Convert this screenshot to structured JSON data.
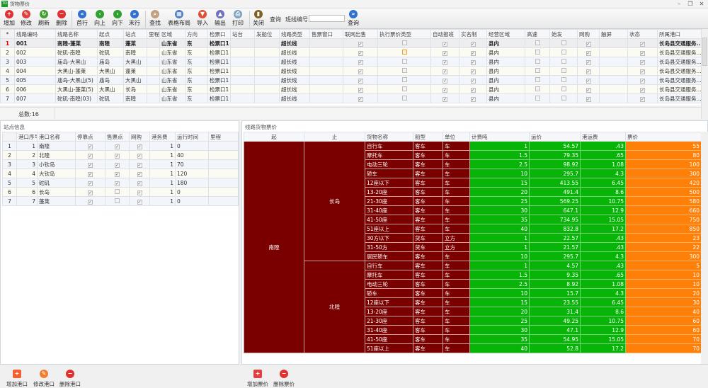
{
  "window": {
    "title": "货物票价",
    "logo": "TD"
  },
  "toolbar": {
    "buttons": [
      {
        "label": "增加",
        "icon": "plus-circle-icon",
        "color": "#e03030"
      },
      {
        "label": "修改",
        "icon": "edit-icon",
        "color": "#e04040"
      },
      {
        "label": "刷新",
        "icon": "refresh-icon",
        "color": "#40a030"
      },
      {
        "label": "删除",
        "icon": "minus-circle-icon",
        "color": "#e03030"
      },
      {
        "label": "首行",
        "icon": "first-row-icon",
        "color": "#3070d0"
      },
      {
        "label": "向上",
        "icon": "up-icon",
        "color": "#30a030"
      },
      {
        "label": "向下",
        "icon": "down-icon",
        "color": "#30a030"
      },
      {
        "label": "末行",
        "icon": "last-row-icon",
        "color": "#3070d0"
      },
      {
        "label": "查找",
        "icon": "magnifier-icon",
        "color": "#c0a080"
      },
      {
        "label": "表格布局",
        "icon": "grid-layout-icon",
        "color": "#5080c0"
      },
      {
        "label": "导入",
        "icon": "import-icon",
        "color": "#e05030"
      },
      {
        "label": "输出",
        "icon": "export-icon",
        "color": "#7070c0"
      },
      {
        "label": "打印",
        "icon": "printer-icon",
        "color": "#80a0c0"
      },
      {
        "label": "关闭",
        "icon": "exit-door-icon",
        "color": "#806020"
      }
    ],
    "query_label": "查询",
    "route_code_label": "班线编号",
    "route_code_value": "",
    "query_button": "查询"
  },
  "routes": {
    "columns": [
      "*",
      "线路编码",
      "线路名称",
      "起点",
      "站点",
      "里程",
      "区域",
      "方向",
      "检票口",
      "站台",
      "发船位",
      "线路类型",
      "售票窗口",
      "联网出售",
      "执行票价类型",
      "自动报班",
      "实名制",
      "经营区域",
      "高速",
      "始发",
      "网购",
      "触屏",
      "状态",
      "所属港口"
    ],
    "rows": [
      [
        "1",
        "001",
        "南隍-蓬莱",
        "南隍",
        "蓬莱",
        "",
        "山东省",
        "东",
        "检票口1",
        "",
        "",
        "超长线",
        "",
        true,
        false,
        true,
        true,
        "县内",
        false,
        false,
        true,
        "",
        true,
        "长岛县交通服务..."
      ],
      [
        "2",
        "002",
        "砣矶-南隍",
        "砣矶",
        "南隍",
        "",
        "山东省",
        "东",
        "检票口1",
        "",
        "",
        "超长线",
        "",
        true,
        "orange",
        true,
        true,
        "县内",
        false,
        false,
        true,
        "",
        true,
        "长岛县交通服务..."
      ],
      [
        "3",
        "003",
        "庙岛-大黑山",
        "庙岛",
        "大黑山",
        "",
        "山东省",
        "东",
        "检票口1",
        "",
        "",
        "超长线",
        "",
        true,
        false,
        true,
        true,
        "县内",
        false,
        false,
        true,
        "",
        true,
        "长岛县交通服务..."
      ],
      [
        "4",
        "004",
        "大黑山-蓬莱",
        "大黑山",
        "蓬莱",
        "",
        "山东省",
        "东",
        "检票口1",
        "",
        "",
        "超长线",
        "",
        true,
        false,
        true,
        true,
        "县内",
        false,
        false,
        true,
        "",
        true,
        "长岛县交通服务..."
      ],
      [
        "5",
        "005",
        "庙岛-大黑山(5)",
        "庙岛",
        "大黑山",
        "",
        "山东省",
        "东",
        "检票口1",
        "",
        "",
        "超长线",
        "",
        true,
        false,
        true,
        true,
        "县内",
        false,
        false,
        true,
        "",
        true,
        "长岛县交通服务..."
      ],
      [
        "6",
        "006",
        "大黑山-蓬莱(5)",
        "大黑山",
        "长岛",
        "",
        "山东省",
        "东",
        "检票口1",
        "",
        "",
        "超长线",
        "",
        true,
        false,
        true,
        true,
        "县内",
        false,
        false,
        true,
        "",
        true,
        "长岛县交通服务..."
      ],
      [
        "7",
        "007",
        "砣矶-南隍(03)",
        "砣矶",
        "南隍",
        "",
        "山东省",
        "东",
        "检票口1",
        "",
        "",
        "超长线",
        "",
        true,
        false,
        true,
        true,
        "县内",
        false,
        false,
        true,
        "",
        true,
        "长岛县交通服务..."
      ]
    ],
    "total_label": "总数:16"
  },
  "stations": {
    "title": "站点信息",
    "columns": [
      "",
      "港口序号",
      "港口名称",
      "停靠点",
      "售票点",
      "网购",
      "港务费",
      "运行时间",
      "里程"
    ],
    "rows": [
      [
        "1",
        "1",
        "南隍",
        true,
        true,
        true,
        "1",
        "0",
        ""
      ],
      [
        "2",
        "2",
        "北隍",
        true,
        true,
        true,
        "1",
        "40",
        ""
      ],
      [
        "3",
        "3",
        "小钦岛",
        true,
        true,
        true,
        "1",
        "70",
        ""
      ],
      [
        "4",
        "4",
        "大钦岛",
        true,
        true,
        true,
        "1",
        "120",
        ""
      ],
      [
        "5",
        "5",
        "砣矶",
        true,
        true,
        true,
        "1",
        "180",
        ""
      ],
      [
        "6",
        "6",
        "长岛",
        true,
        false,
        true,
        "1",
        "0",
        ""
      ],
      [
        "7",
        "7",
        "蓬莱",
        true,
        false,
        true,
        "1",
        "0",
        ""
      ]
    ],
    "buttons": [
      {
        "label": "增加港口",
        "icon": "add-icon",
        "color": "#f06030"
      },
      {
        "label": "修改港口",
        "icon": "edit-icon",
        "color": "#f08030"
      },
      {
        "label": "删除港口",
        "icon": "delete-icon",
        "color": "#e03030"
      }
    ]
  },
  "prices": {
    "title": "线路货物票价",
    "columns": [
      "起",
      "止",
      "货物名称",
      "船型",
      "单位",
      "计费吨",
      "运价",
      "港运费",
      "票价"
    ],
    "colors": {
      "group": "#7a0000",
      "calc": "#08b408",
      "price": "#ff8008"
    },
    "from": "南隍",
    "groups": [
      {
        "to": "长岛",
        "rows": [
          [
            "自行车",
            "客车",
            "车",
            "1",
            "54.57",
            ".43",
            "55"
          ],
          [
            "摩托车",
            "客车",
            "车",
            "1.5",
            "79.35",
            ".65",
            "80"
          ],
          [
            "电动三轮",
            "客车",
            "车",
            "2.5",
            "98.92",
            "1.08",
            "100"
          ],
          [
            "轿车",
            "客车",
            "车",
            "10",
            "295.7",
            "4.3",
            "300"
          ],
          [
            "12座以下",
            "客车",
            "车",
            "15",
            "413.55",
            "6.45",
            "420"
          ],
          [
            "13-20座",
            "客车",
            "车",
            "20",
            "491.4",
            "8.6",
            "500"
          ],
          [
            "21-30座",
            "客车",
            "车",
            "25",
            "569.25",
            "10.75",
            "580"
          ],
          [
            "31-40座",
            "客车",
            "车",
            "30",
            "647.1",
            "12.9",
            "660"
          ],
          [
            "41-50座",
            "客车",
            "车",
            "35",
            "734.95",
            "15.05",
            "750"
          ],
          [
            "51座以上",
            "客车",
            "车",
            "40",
            "832.8",
            "17.2",
            "850"
          ],
          [
            "30方以下",
            "货车",
            "立方",
            "1",
            "22.57",
            ".43",
            "23"
          ],
          [
            "31-50方",
            "货车",
            "立方",
            "1",
            "21.57",
            ".43",
            "22"
          ],
          [
            "居民轿车",
            "客车",
            "车",
            "10",
            "295.7",
            "4.3",
            "300"
          ]
        ]
      },
      {
        "to": "北隍",
        "rows": [
          [
            "自行车",
            "客车",
            "车",
            "1",
            "4.57",
            ".43",
            "5"
          ],
          [
            "摩托车",
            "客车",
            "车",
            "1.5",
            "9.35",
            ".65",
            "10"
          ],
          [
            "电动三轮",
            "客车",
            "车",
            "2.5",
            "8.92",
            "1.08",
            "10"
          ],
          [
            "轿车",
            "客车",
            "车",
            "10",
            "15.7",
            "4.3",
            "20"
          ],
          [
            "12座以下",
            "客车",
            "车",
            "15",
            "23.55",
            "6.45",
            "30"
          ],
          [
            "13-20座",
            "客车",
            "车",
            "20",
            "31.4",
            "8.6",
            "40"
          ],
          [
            "21-30座",
            "客车",
            "车",
            "25",
            "49.25",
            "10.75",
            "60"
          ],
          [
            "31-40座",
            "客车",
            "车",
            "30",
            "47.1",
            "12.9",
            "60"
          ],
          [
            "41-50座",
            "客车",
            "车",
            "35",
            "54.95",
            "15.05",
            "70"
          ],
          [
            "51座以上",
            "客车",
            "车",
            "40",
            "52.8",
            "17.2",
            "70"
          ]
        ]
      }
    ],
    "buttons": [
      {
        "label": "增加票价",
        "icon": "add-icon",
        "color": "#e04040"
      },
      {
        "label": "删除票价",
        "icon": "delete-icon",
        "color": "#e03030"
      }
    ]
  }
}
